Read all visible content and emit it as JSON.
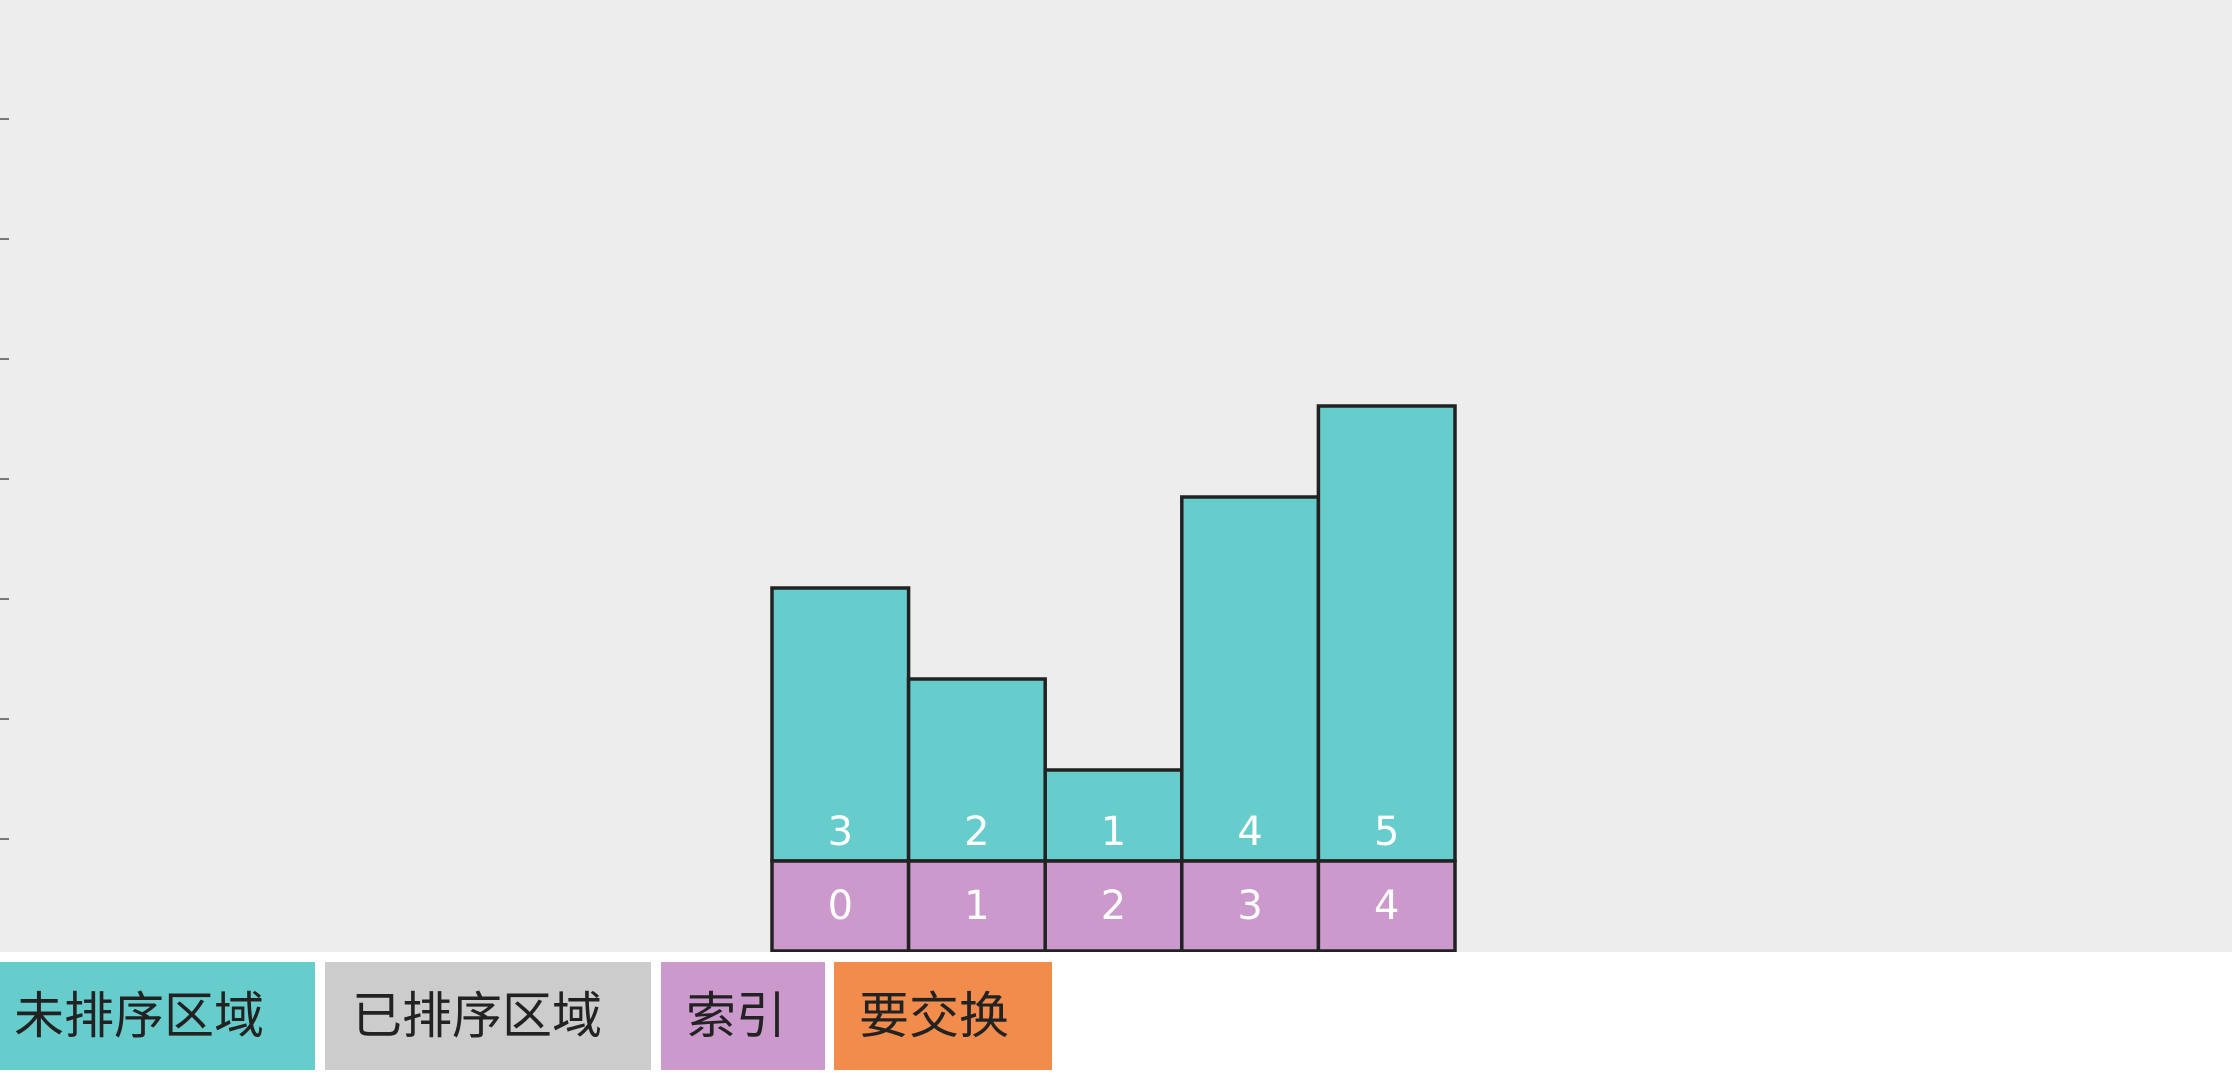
{
  "colors": {
    "background": "#ededed",
    "bar_fill": "#66cccc",
    "index_fill": "#cc99cc",
    "stroke": "#222222",
    "legend_unsorted": "#66cccc",
    "legend_sorted": "#cccccc",
    "legend_index": "#cc99cc",
    "legend_swap": "#f28c4c"
  },
  "chart_data": {
    "type": "bar",
    "values": [
      3,
      2,
      1,
      4,
      5
    ],
    "indices": [
      "0",
      "1",
      "2",
      "3",
      "4"
    ],
    "states": [
      "unsorted",
      "unsorted",
      "unsorted",
      "unsorted",
      "unsorted"
    ],
    "title": "",
    "xlabel": "",
    "ylabel": ""
  },
  "legend": {
    "unsorted": "未排序区域",
    "sorted": "已排序区域",
    "index": "索引",
    "swap": "要交换"
  }
}
